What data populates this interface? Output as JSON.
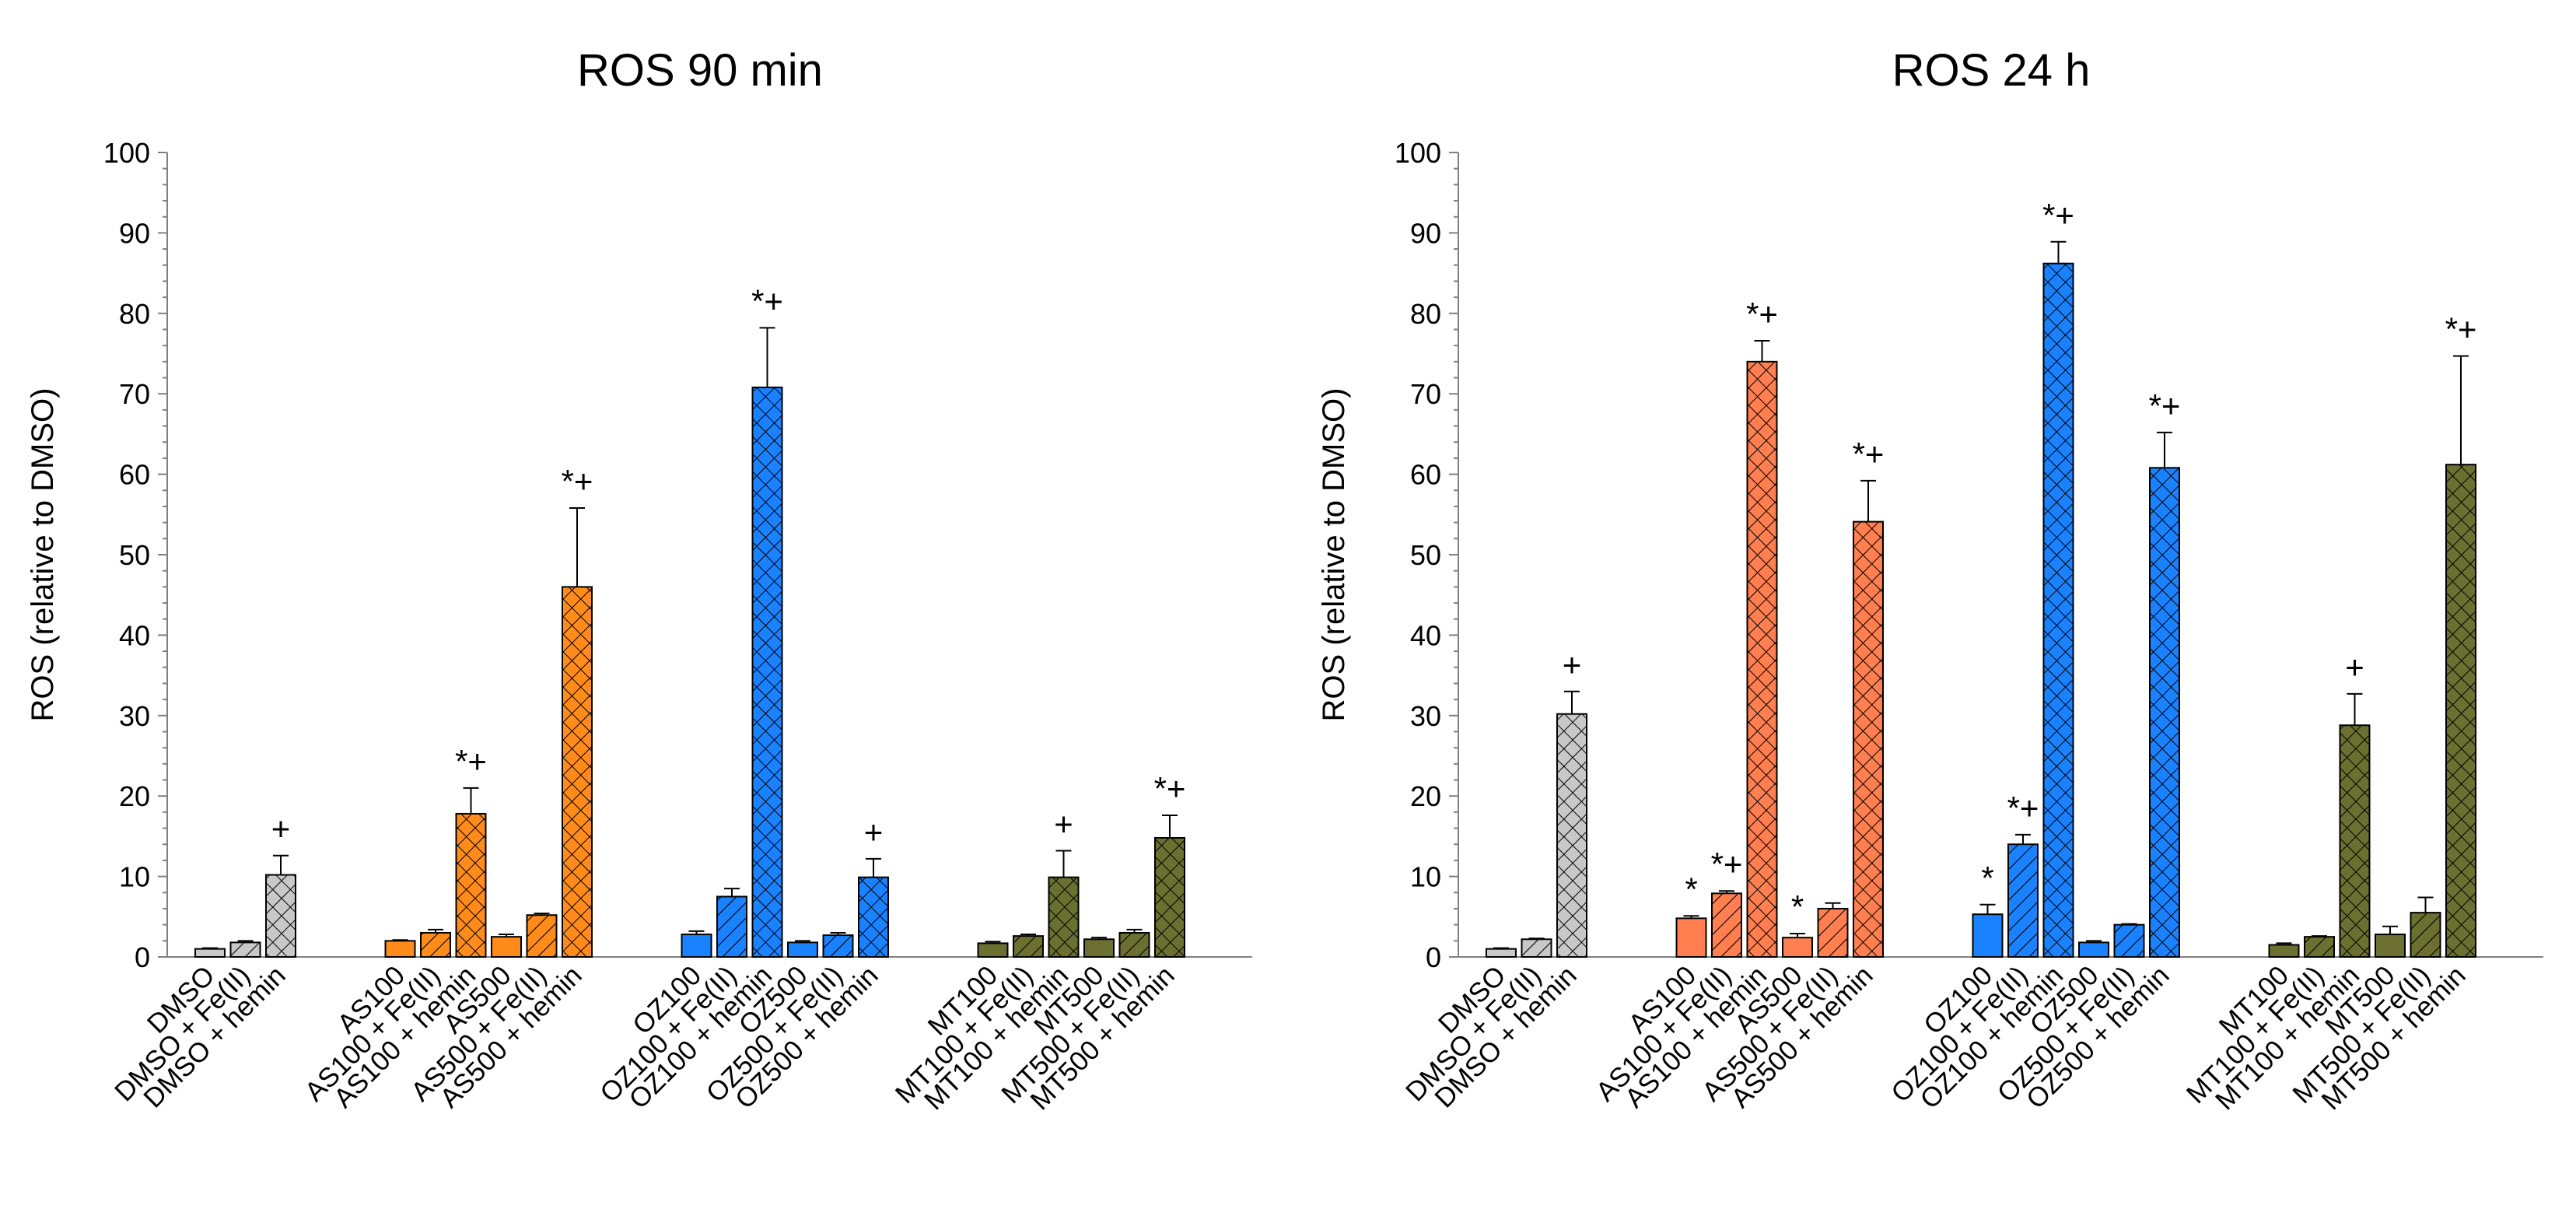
{
  "chart_data": [
    {
      "type": "bar",
      "title": "ROS 90 min",
      "xlabel": "",
      "ylabel": "ROS  (relative to DMSO)",
      "ylim": [
        0,
        100
      ],
      "yticks": [
        0,
        10,
        20,
        30,
        40,
        50,
        60,
        70,
        80,
        90,
        100
      ],
      "categories": [
        "DMSO",
        "DMSO + Fe(II)",
        "DMSO + hemin",
        "AS100",
        "AS100 + Fe(II)",
        "AS100 + hemin",
        "AS500",
        "AS500 + Fe(II)",
        "AS500 + hemin",
        "OZ100",
        "OZ100 + Fe(II)",
        "OZ100 + hemin",
        "OZ500",
        "OZ500 + Fe(II)",
        "OZ500 + hemin",
        "MT100",
        "MT100 + Fe(II)",
        "MT100 + hemin",
        "MT500",
        "MT500 + Fe(II)",
        "MT500 + hemin"
      ],
      "values": [
        1,
        1.8,
        10.2,
        2,
        3,
        17.8,
        2.5,
        5.2,
        46,
        2.8,
        7.5,
        70.8,
        1.8,
        2.7,
        9.9,
        1.7,
        2.6,
        9.9,
        2.2,
        3,
        14.8
      ],
      "errors": [
        0.1,
        0.2,
        2.4,
        0.1,
        0.4,
        3.2,
        0.3,
        0.2,
        9.8,
        0.4,
        1,
        7.4,
        0.2,
        0.3,
        2.3,
        0.2,
        0.2,
        3.3,
        0.2,
        0.4,
        2.8
      ],
      "annotations": [
        "",
        "",
        "+",
        "",
        "",
        "*+",
        "",
        "",
        "*+",
        "",
        "",
        "*+",
        "",
        "",
        "+",
        "",
        "",
        "+",
        "",
        "",
        "*+"
      ]
    },
    {
      "type": "bar",
      "title": "ROS 24 h",
      "xlabel": "",
      "ylabel": "ROS  (relative to DMSO)",
      "ylim": [
        0,
        100
      ],
      "yticks": [
        0,
        10,
        20,
        30,
        40,
        50,
        60,
        70,
        80,
        90,
        100
      ],
      "categories": [
        "DMSO",
        "DMSO + Fe(II)",
        "DMSO + hemin",
        "AS100",
        "AS100 + Fe(II)",
        "AS100 + hemin",
        "AS500",
        "AS500 + Fe(II)",
        "AS500 + hemin",
        "OZ100",
        "OZ100 + Fe(II)",
        "OZ100 + hemin",
        "OZ500",
        "OZ500 + Fe(II)",
        "OZ500 + hemin",
        "MT100",
        "MT100 + Fe(II)",
        "MT100 + hemin",
        "MT500",
        "MT500 + Fe(II)",
        "MT500 + hemin"
      ],
      "values": [
        1,
        2.2,
        30.2,
        4.8,
        7.9,
        74,
        2.4,
        6,
        54.1,
        5.3,
        14,
        86.2,
        1.8,
        4,
        60.8,
        1.5,
        2.5,
        28.8,
        2.8,
        5.5,
        61.2
      ],
      "errors": [
        0.1,
        0.1,
        2.8,
        0.3,
        0.3,
        2.6,
        0.5,
        0.7,
        5.1,
        1.2,
        1.2,
        2.7,
        0.2,
        0.1,
        4.4,
        0.2,
        0.1,
        3.9,
        1,
        1.9,
        13.5
      ],
      "annotations": [
        "",
        "",
        "+",
        "*",
        "*+",
        "*+",
        "*",
        "",
        "*+",
        "*",
        "*+",
        "*+",
        "",
        "",
        "*+",
        "",
        "",
        "+",
        "",
        "",
        "*+"
      ]
    }
  ],
  "style": {
    "series_colors": [
      "#c8c8c8",
      "#ff8c1a",
      "#1a82ff",
      "#6b7030"
    ],
    "series_colors_24h": [
      "#c8c8c8",
      "#ff7f50",
      "#1a82ff",
      "#6b7030"
    ]
  }
}
